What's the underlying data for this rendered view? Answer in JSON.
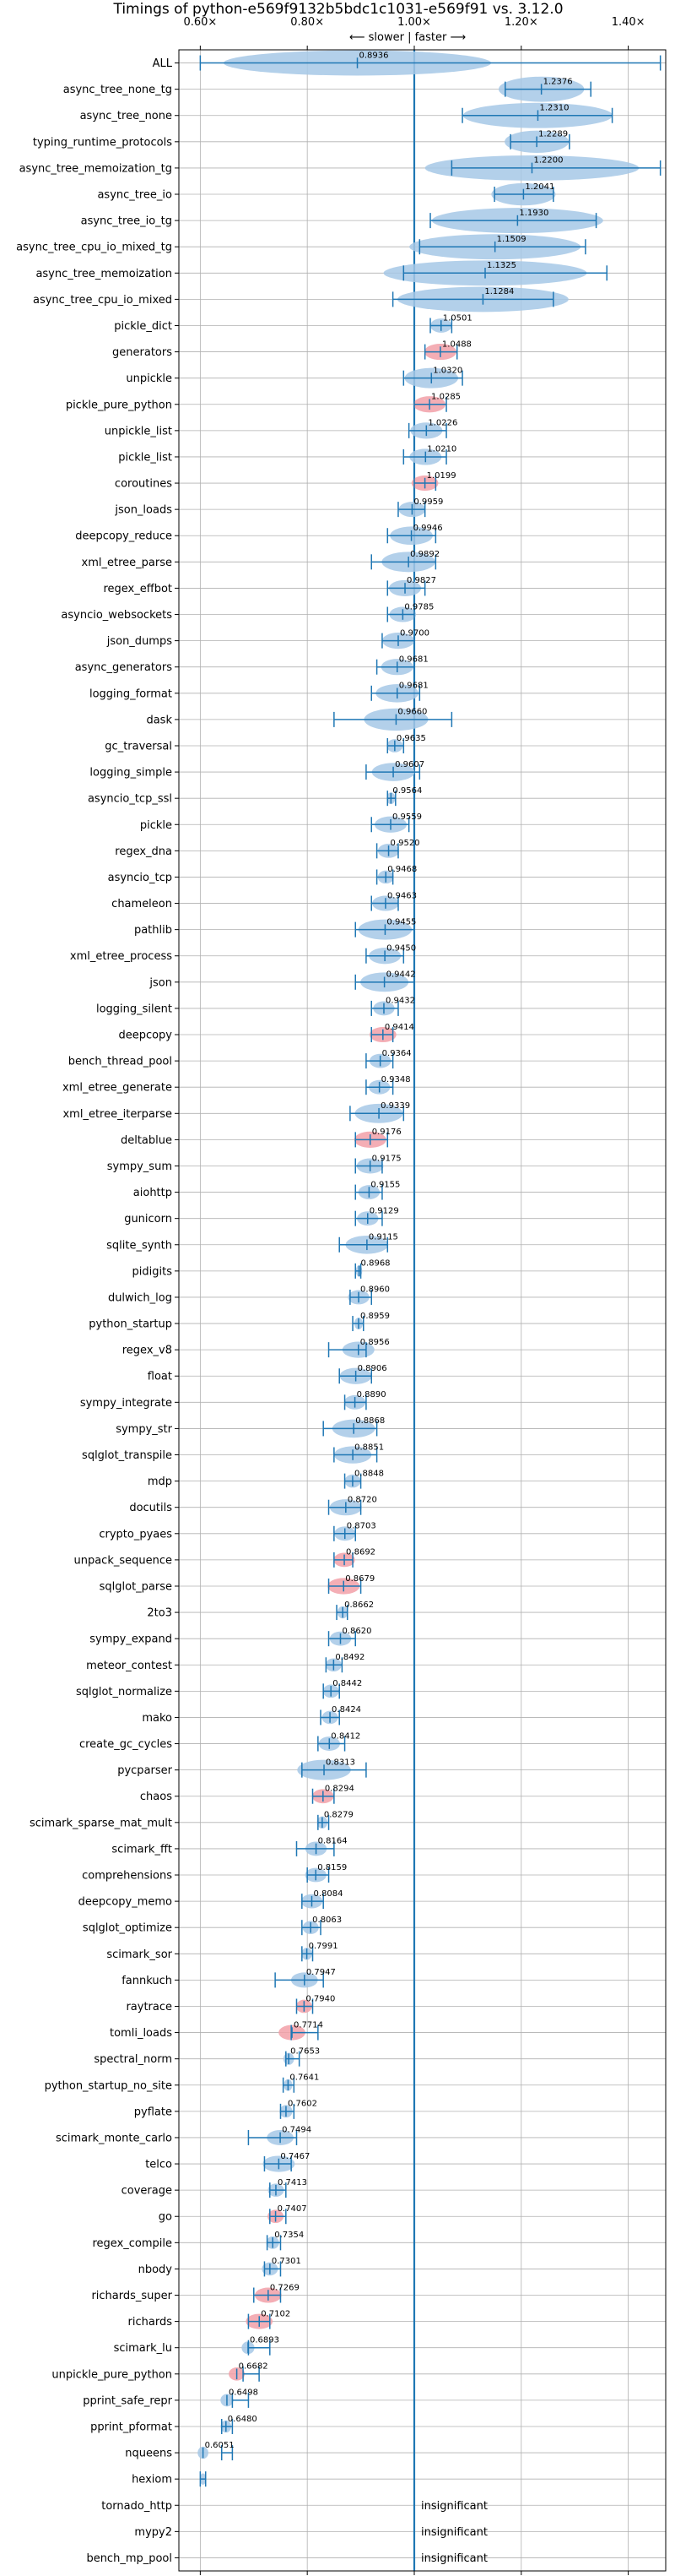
{
  "chart_data": {
    "type": "violin",
    "orientation": "horizontal",
    "title": "Timings of python-e569f9132b5bdc1c1031-e569f91 vs. 3.12.0",
    "direction_label": "⟵ slower | faster ⟶",
    "xlim": [
      0.56,
      1.47
    ],
    "x_ticks": [
      0.6,
      0.8,
      1.0,
      1.2,
      1.4
    ],
    "x_tick_labels": [
      "0.60×",
      "0.80×",
      "1.00×",
      "1.20×",
      "1.40×"
    ],
    "tick_positions": [
      "top",
      "bottom"
    ],
    "reference_line": 1.0,
    "grid": true,
    "colors": {
      "normal": "#1f77b4",
      "violin_normal": "#a6c8e6",
      "violin_highlight": "#f2a0a8",
      "grid": "#b0b0b0"
    },
    "benchmarks": [
      {
        "name": "ALL",
        "value": 0.8936,
        "label": "0.8936",
        "min": 0.6,
        "max": 1.46,
        "spread": 0.25,
        "highlight": false
      },
      {
        "name": "async_tree_none_tg",
        "value": 1.2376,
        "label": "1.2376",
        "min": 1.17,
        "max": 1.33,
        "spread": 0.08,
        "highlight": false
      },
      {
        "name": "async_tree_none",
        "value": 1.231,
        "label": "1.2310",
        "min": 1.09,
        "max": 1.37,
        "spread": 0.14,
        "highlight": false
      },
      {
        "name": "typing_runtime_protocols",
        "value": 1.2289,
        "label": "1.2289",
        "min": 1.18,
        "max": 1.29,
        "spread": 0.06,
        "highlight": false
      },
      {
        "name": "async_tree_memoization_tg",
        "value": 1.22,
        "label": "1.2200",
        "min": 1.07,
        "max": 1.46,
        "spread": 0.2,
        "highlight": false
      },
      {
        "name": "async_tree_io",
        "value": 1.2041,
        "label": "1.2041",
        "min": 1.15,
        "max": 1.26,
        "spread": 0.06,
        "highlight": false
      },
      {
        "name": "async_tree_io_tg",
        "value": 1.193,
        "label": "1.1930",
        "min": 1.03,
        "max": 1.34,
        "spread": 0.16,
        "highlight": false
      },
      {
        "name": "async_tree_cpu_io_mixed_tg",
        "value": 1.1509,
        "label": "1.1509",
        "min": 1.01,
        "max": 1.32,
        "spread": 0.16,
        "highlight": false
      },
      {
        "name": "async_tree_memoization",
        "value": 1.1325,
        "label": "1.1325",
        "min": 0.98,
        "max": 1.36,
        "spread": 0.19,
        "highlight": false
      },
      {
        "name": "async_tree_cpu_io_mixed",
        "value": 1.1284,
        "label": "1.1284",
        "min": 0.96,
        "max": 1.26,
        "spread": 0.16,
        "highlight": false
      },
      {
        "name": "pickle_dict",
        "value": 1.0501,
        "label": "1.0501",
        "min": 1.03,
        "max": 1.07,
        "spread": 0.02,
        "highlight": false
      },
      {
        "name": "generators",
        "value": 1.0488,
        "label": "1.0488",
        "min": 1.02,
        "max": 1.08,
        "spread": 0.03,
        "highlight": true
      },
      {
        "name": "unpickle",
        "value": 1.032,
        "label": "1.0320",
        "min": 0.98,
        "max": 1.09,
        "spread": 0.05,
        "highlight": false
      },
      {
        "name": "pickle_pure_python",
        "value": 1.0285,
        "label": "1.0285",
        "min": 1.0,
        "max": 1.06,
        "spread": 0.03,
        "highlight": true
      },
      {
        "name": "unpickle_list",
        "value": 1.0226,
        "label": "1.0226",
        "min": 0.99,
        "max": 1.06,
        "spread": 0.03,
        "highlight": false
      },
      {
        "name": "pickle_list",
        "value": 1.021,
        "label": "1.0210",
        "min": 0.98,
        "max": 1.06,
        "spread": 0.03,
        "highlight": false
      },
      {
        "name": "coroutines",
        "value": 1.0199,
        "label": "1.0199",
        "min": 1.0,
        "max": 1.04,
        "spread": 0.025,
        "highlight": true
      },
      {
        "name": "json_loads",
        "value": 0.9959,
        "label": "0.9959",
        "min": 0.97,
        "max": 1.02,
        "spread": 0.025,
        "highlight": false
      },
      {
        "name": "deepcopy_reduce",
        "value": 0.9946,
        "label": "0.9946",
        "min": 0.95,
        "max": 1.04,
        "spread": 0.04,
        "highlight": false
      },
      {
        "name": "xml_etree_parse",
        "value": 0.9892,
        "label": "0.9892",
        "min": 0.92,
        "max": 1.04,
        "spread": 0.05,
        "highlight": false
      },
      {
        "name": "regex_effbot",
        "value": 0.9827,
        "label": "0.9827",
        "min": 0.95,
        "max": 1.02,
        "spread": 0.03,
        "highlight": false
      },
      {
        "name": "asyncio_websockets",
        "value": 0.9785,
        "label": "0.9785",
        "min": 0.95,
        "max": 1.0,
        "spread": 0.025,
        "highlight": false
      },
      {
        "name": "json_dumps",
        "value": 0.97,
        "label": "0.9700",
        "min": 0.94,
        "max": 1.0,
        "spread": 0.03,
        "highlight": false
      },
      {
        "name": "async_generators",
        "value": 0.9681,
        "label": "0.9681",
        "min": 0.93,
        "max": 1.0,
        "spread": 0.03,
        "highlight": false
      },
      {
        "name": "logging_format",
        "value": 0.9681,
        "label": "0.9681",
        "min": 0.92,
        "max": 1.01,
        "spread": 0.04,
        "highlight": false
      },
      {
        "name": "dask",
        "value": 0.966,
        "label": "0.9660",
        "min": 0.85,
        "max": 1.07,
        "spread": 0.06,
        "highlight": false
      },
      {
        "name": "gc_traversal",
        "value": 0.9635,
        "label": "0.9635",
        "min": 0.95,
        "max": 0.98,
        "spread": 0.015,
        "highlight": false
      },
      {
        "name": "logging_simple",
        "value": 0.9607,
        "label": "0.9607",
        "min": 0.91,
        "max": 1.01,
        "spread": 0.04,
        "highlight": false
      },
      {
        "name": "asyncio_tcp_ssl",
        "value": 0.9564,
        "label": "0.9564",
        "min": 0.95,
        "max": 0.965,
        "spread": 0.008,
        "highlight": false
      },
      {
        "name": "pickle",
        "value": 0.9559,
        "label": "0.9559",
        "min": 0.92,
        "max": 0.99,
        "spread": 0.03,
        "highlight": false
      },
      {
        "name": "regex_dna",
        "value": 0.952,
        "label": "0.9520",
        "min": 0.93,
        "max": 0.97,
        "spread": 0.02,
        "highlight": false
      },
      {
        "name": "asyncio_tcp",
        "value": 0.9468,
        "label": "0.9468",
        "min": 0.93,
        "max": 0.96,
        "spread": 0.015,
        "highlight": false
      },
      {
        "name": "chameleon",
        "value": 0.9463,
        "label": "0.9463",
        "min": 0.92,
        "max": 0.97,
        "spread": 0.025,
        "highlight": false
      },
      {
        "name": "pathlib",
        "value": 0.9455,
        "label": "0.9455",
        "min": 0.89,
        "max": 1.0,
        "spread": 0.05,
        "highlight": false
      },
      {
        "name": "xml_etree_process",
        "value": 0.945,
        "label": "0.9450",
        "min": 0.91,
        "max": 0.98,
        "spread": 0.03,
        "highlight": false
      },
      {
        "name": "json",
        "value": 0.9442,
        "label": "0.9442",
        "min": 0.89,
        "max": 1.0,
        "spread": 0.045,
        "highlight": false
      },
      {
        "name": "logging_silent",
        "value": 0.9432,
        "label": "0.9432",
        "min": 0.92,
        "max": 0.97,
        "spread": 0.02,
        "highlight": false
      },
      {
        "name": "deepcopy",
        "value": 0.9414,
        "label": "0.9414",
        "min": 0.92,
        "max": 0.96,
        "spread": 0.025,
        "highlight": true
      },
      {
        "name": "bench_thread_pool",
        "value": 0.9364,
        "label": "0.9364",
        "min": 0.91,
        "max": 0.96,
        "spread": 0.02,
        "highlight": false
      },
      {
        "name": "xml_etree_generate",
        "value": 0.9348,
        "label": "0.9348",
        "min": 0.91,
        "max": 0.96,
        "spread": 0.02,
        "highlight": false
      },
      {
        "name": "xml_etree_iterparse",
        "value": 0.9339,
        "label": "0.9339",
        "min": 0.88,
        "max": 0.98,
        "spread": 0.045,
        "highlight": false
      },
      {
        "name": "deltablue",
        "value": 0.9176,
        "label": "0.9176",
        "min": 0.89,
        "max": 0.95,
        "spread": 0.03,
        "highlight": true
      },
      {
        "name": "sympy_sum",
        "value": 0.9175,
        "label": "0.9175",
        "min": 0.89,
        "max": 0.94,
        "spread": 0.025,
        "highlight": false
      },
      {
        "name": "aiohttp",
        "value": 0.9155,
        "label": "0.9155",
        "min": 0.89,
        "max": 0.94,
        "spread": 0.02,
        "highlight": false
      },
      {
        "name": "gunicorn",
        "value": 0.9129,
        "label": "0.9129",
        "min": 0.89,
        "max": 0.94,
        "spread": 0.02,
        "highlight": false
      },
      {
        "name": "sqlite_synth",
        "value": 0.9115,
        "label": "0.9115",
        "min": 0.86,
        "max": 0.95,
        "spread": 0.04,
        "highlight": false
      },
      {
        "name": "pidigits",
        "value": 0.8968,
        "label": "0.8968",
        "min": 0.89,
        "max": 0.9,
        "spread": 0.006,
        "highlight": false
      },
      {
        "name": "dulwich_log",
        "value": 0.896,
        "label": "0.8960",
        "min": 0.88,
        "max": 0.92,
        "spread": 0.02,
        "highlight": false
      },
      {
        "name": "python_startup",
        "value": 0.8959,
        "label": "0.8959",
        "min": 0.885,
        "max": 0.905,
        "spread": 0.008,
        "highlight": false
      },
      {
        "name": "regex_v8",
        "value": 0.8956,
        "label": "0.8956",
        "min": 0.84,
        "max": 0.91,
        "spread": 0.03,
        "highlight": false
      },
      {
        "name": "float",
        "value": 0.8906,
        "label": "0.8906",
        "min": 0.86,
        "max": 0.92,
        "spread": 0.03,
        "highlight": false
      },
      {
        "name": "sympy_integrate",
        "value": 0.889,
        "label": "0.8890",
        "min": 0.87,
        "max": 0.91,
        "spread": 0.02,
        "highlight": false
      },
      {
        "name": "sympy_str",
        "value": 0.8868,
        "label": "0.8868",
        "min": 0.83,
        "max": 0.93,
        "spread": 0.04,
        "highlight": false
      },
      {
        "name": "sqlglot_transpile",
        "value": 0.8851,
        "label": "0.8851",
        "min": 0.85,
        "max": 0.93,
        "spread": 0.035,
        "highlight": false
      },
      {
        "name": "mdp",
        "value": 0.8848,
        "label": "0.8848",
        "min": 0.87,
        "max": 0.9,
        "spread": 0.015,
        "highlight": false
      },
      {
        "name": "docutils",
        "value": 0.872,
        "label": "0.8720",
        "min": 0.84,
        "max": 0.9,
        "spread": 0.03,
        "highlight": false
      },
      {
        "name": "crypto_pyaes",
        "value": 0.8703,
        "label": "0.8703",
        "min": 0.85,
        "max": 0.89,
        "spread": 0.02,
        "highlight": false
      },
      {
        "name": "unpack_sequence",
        "value": 0.8692,
        "label": "0.8692",
        "min": 0.85,
        "max": 0.885,
        "spread": 0.02,
        "highlight": true
      },
      {
        "name": "sqlglot_parse",
        "value": 0.8679,
        "label": "0.8679",
        "min": 0.84,
        "max": 0.9,
        "spread": 0.03,
        "highlight": true
      },
      {
        "name": "2to3",
        "value": 0.8662,
        "label": "0.8662",
        "min": 0.855,
        "max": 0.875,
        "spread": 0.01,
        "highlight": false
      },
      {
        "name": "sympy_expand",
        "value": 0.862,
        "label": "0.8620",
        "min": 0.84,
        "max": 0.89,
        "spread": 0.02,
        "highlight": false
      },
      {
        "name": "meteor_contest",
        "value": 0.8492,
        "label": "0.8492",
        "min": 0.835,
        "max": 0.865,
        "spread": 0.015,
        "highlight": false
      },
      {
        "name": "sqlglot_normalize",
        "value": 0.8442,
        "label": "0.8442",
        "min": 0.83,
        "max": 0.86,
        "spread": 0.015,
        "highlight": false
      },
      {
        "name": "mako",
        "value": 0.8424,
        "label": "0.8424",
        "min": 0.825,
        "max": 0.86,
        "spread": 0.015,
        "highlight": false
      },
      {
        "name": "create_gc_cycles",
        "value": 0.8412,
        "label": "0.8412",
        "min": 0.82,
        "max": 0.87,
        "spread": 0.02,
        "highlight": false
      },
      {
        "name": "pycparser",
        "value": 0.8313,
        "label": "0.8313",
        "min": 0.79,
        "max": 0.91,
        "spread": 0.05,
        "highlight": false
      },
      {
        "name": "chaos",
        "value": 0.8294,
        "label": "0.8294",
        "min": 0.81,
        "max": 0.85,
        "spread": 0.02,
        "highlight": true
      },
      {
        "name": "scimark_sparse_mat_mult",
        "value": 0.8279,
        "label": "0.8279",
        "min": 0.82,
        "max": 0.84,
        "spread": 0.01,
        "highlight": false
      },
      {
        "name": "scimark_fft",
        "value": 0.8164,
        "label": "0.8164",
        "min": 0.78,
        "max": 0.85,
        "spread": 0.02,
        "highlight": false
      },
      {
        "name": "comprehensions",
        "value": 0.8159,
        "label": "0.8159",
        "min": 0.8,
        "max": 0.84,
        "spread": 0.02,
        "highlight": false
      },
      {
        "name": "deepcopy_memo",
        "value": 0.8084,
        "label": "0.8084",
        "min": 0.79,
        "max": 0.83,
        "spread": 0.02,
        "highlight": false
      },
      {
        "name": "sqlglot_optimize",
        "value": 0.8063,
        "label": "0.8063",
        "min": 0.79,
        "max": 0.825,
        "spread": 0.015,
        "highlight": false
      },
      {
        "name": "scimark_sor",
        "value": 0.7991,
        "label": "0.7991",
        "min": 0.79,
        "max": 0.81,
        "spread": 0.01,
        "highlight": false
      },
      {
        "name": "fannkuch",
        "value": 0.7947,
        "label": "0.7947",
        "min": 0.74,
        "max": 0.83,
        "spread": 0.025,
        "highlight": false
      },
      {
        "name": "raytrace",
        "value": 0.794,
        "label": "0.7940",
        "min": 0.78,
        "max": 0.81,
        "spread": 0.015,
        "highlight": true
      },
      {
        "name": "tomli_loads",
        "value": 0.7714,
        "label": "0.7714",
        "min": 0.77,
        "max": 0.82,
        "spread": 0.025,
        "highlight": true
      },
      {
        "name": "spectral_norm",
        "value": 0.7653,
        "label": "0.7653",
        "min": 0.76,
        "max": 0.785,
        "spread": 0.01,
        "highlight": false
      },
      {
        "name": "python_startup_no_site",
        "value": 0.7641,
        "label": "0.7641",
        "min": 0.755,
        "max": 0.775,
        "spread": 0.008,
        "highlight": false
      },
      {
        "name": "pyflate",
        "value": 0.7602,
        "label": "0.7602",
        "min": 0.75,
        "max": 0.775,
        "spread": 0.012,
        "highlight": false
      },
      {
        "name": "scimark_monte_carlo",
        "value": 0.7494,
        "label": "0.7494",
        "min": 0.69,
        "max": 0.78,
        "spread": 0.025,
        "highlight": false
      },
      {
        "name": "telco",
        "value": 0.7467,
        "label": "0.7467",
        "min": 0.72,
        "max": 0.77,
        "spread": 0.03,
        "highlight": false
      },
      {
        "name": "coverage",
        "value": 0.7413,
        "label": "0.7413",
        "min": 0.73,
        "max": 0.76,
        "spread": 0.015,
        "highlight": false
      },
      {
        "name": "go",
        "value": 0.7407,
        "label": "0.7407",
        "min": 0.73,
        "max": 0.76,
        "spread": 0.015,
        "highlight": true
      },
      {
        "name": "regex_compile",
        "value": 0.7354,
        "label": "0.7354",
        "min": 0.725,
        "max": 0.75,
        "spread": 0.012,
        "highlight": false
      },
      {
        "name": "nbody",
        "value": 0.7301,
        "label": "0.7301",
        "min": 0.72,
        "max": 0.75,
        "spread": 0.015,
        "highlight": false
      },
      {
        "name": "richards_super",
        "value": 0.7269,
        "label": "0.7269",
        "min": 0.7,
        "max": 0.75,
        "spread": 0.025,
        "highlight": true
      },
      {
        "name": "richards",
        "value": 0.7102,
        "label": "0.7102",
        "min": 0.69,
        "max": 0.73,
        "spread": 0.025,
        "highlight": true
      },
      {
        "name": "scimark_lu",
        "value": 0.6893,
        "label": "0.6893",
        "min": 0.69,
        "max": 0.73,
        "spread": 0.012,
        "highlight": false
      },
      {
        "name": "unpickle_pure_python",
        "value": 0.6682,
        "label": "0.6682",
        "min": 0.68,
        "max": 0.71,
        "spread": 0.015,
        "highlight": true
      },
      {
        "name": "pprint_safe_repr",
        "value": 0.6498,
        "label": "0.6498",
        "min": 0.66,
        "max": 0.69,
        "spread": 0.012,
        "highlight": false
      },
      {
        "name": "pprint_pformat",
        "value": 0.648,
        "label": "0.6480",
        "min": 0.64,
        "max": 0.66,
        "spread": 0.01,
        "highlight": false
      },
      {
        "name": "nqueens",
        "value": 0.6051,
        "label": "0.6051",
        "min": 0.64,
        "max": 0.66,
        "spread": 0.01,
        "highlight": false
      },
      {
        "name": "hexiom",
        "value": null,
        "label": "",
        "min": 0.6,
        "max": 0.61,
        "spread": 0.006,
        "highlight": false
      },
      {
        "name": "tornado_http",
        "value": null,
        "label": "insignificant",
        "insignificant": true
      },
      {
        "name": "mypy2",
        "value": null,
        "label": "insignificant",
        "insignificant": true
      },
      {
        "name": "bench_mp_pool",
        "value": null,
        "label": "insignificant",
        "insignificant": true
      }
    ]
  }
}
